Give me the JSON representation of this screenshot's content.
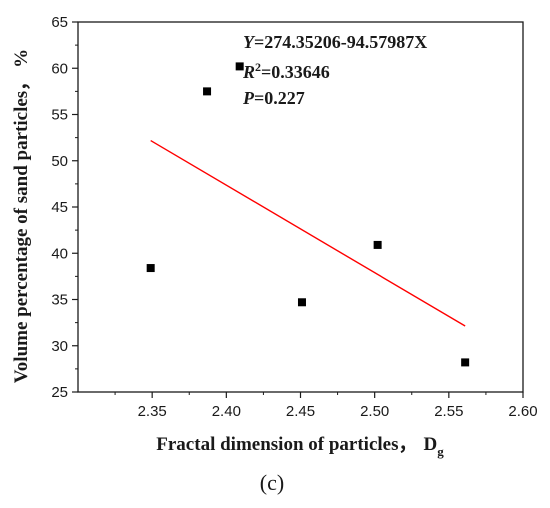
{
  "chart_data": {
    "type": "scatter",
    "xlabel": "Fractal dimension of particles，",
    "xlabel_symbol": "D",
    "xlabel_subscript": "g",
    "ylabel": "Volume percentage of sand particles，",
    "ylabel_unit": "%",
    "xlim": [
      2.3,
      2.6
    ],
    "ylim": [
      25,
      65
    ],
    "x_ticks": [
      "2.35",
      "2.40",
      "2.45",
      "2.50",
      "2.55",
      "2.60"
    ],
    "y_ticks": [
      "25",
      "30",
      "35",
      "40",
      "45",
      "50",
      "55",
      "60",
      "65"
    ],
    "points": [
      {
        "x": 2.349,
        "y": 38.4
      },
      {
        "x": 2.387,
        "y": 57.5
      },
      {
        "x": 2.409,
        "y": 60.2
      },
      {
        "x": 2.451,
        "y": 34.7
      },
      {
        "x": 2.502,
        "y": 40.9
      },
      {
        "x": 2.561,
        "y": 28.2
      }
    ],
    "fit_line": {
      "x": [
        2.349,
        2.561
      ],
      "intercept": 274.35206,
      "slope": -94.57987,
      "color": "#ff0000"
    },
    "annotation": {
      "equation_lhs": "Y",
      "equation_rhs": "=274.35206-94.57987X",
      "r2_symbol": "R",
      "r2_superscript": "2",
      "r2_value": "=0.33646",
      "p_symbol": "P",
      "p_value": "=0.227"
    },
    "grid": false,
    "panel_label": "(c)",
    "marker_color": "#000000"
  }
}
